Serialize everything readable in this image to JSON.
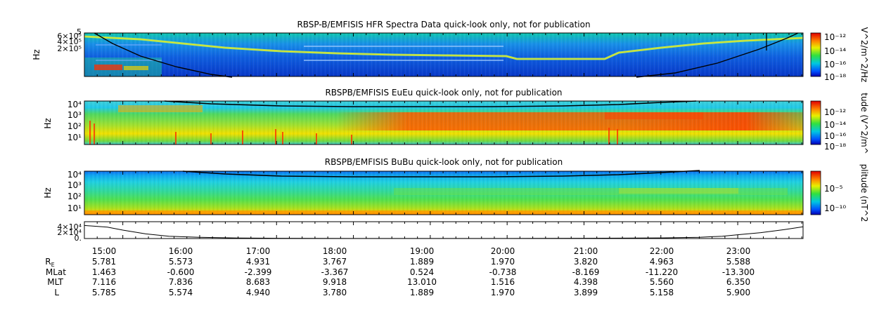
{
  "chart_data": [
    {
      "type": "heatmap",
      "title": "RBSP-B/EMFISIS  HFR Spectra Data quick-look only, not for publication",
      "ylabel": "Hz",
      "ylim": [
        10000,
        500000
      ],
      "yscale": "log",
      "ytick_labels": [
        "5",
        "6×10⁵",
        "4×10⁵",
        "2×10⁵"
      ],
      "colorbar": {
        "label": "V^2/m^2/Hz",
        "ticks": [
          "10⁻¹²",
          "10⁻¹⁴",
          "10⁻¹⁶",
          "10⁻¹⁸"
        ],
        "range": [
          1e-18,
          1e-11
        ]
      }
    },
    {
      "type": "heatmap",
      "title": "RBSPB/EMFISIS  EuEu quick-look only, not for publication",
      "ylabel": "Hz",
      "ylim": [
        3,
        20000
      ],
      "yscale": "log",
      "ytick_labels": [
        "10⁴",
        "10³",
        "10²",
        "10¹"
      ],
      "colorbar": {
        "label": "tude (V^2/m^",
        "ticks": [
          "10⁻¹²",
          "10⁻¹⁴",
          "10⁻¹⁶",
          "10⁻¹⁸"
        ],
        "range": [
          1e-18,
          1e-11
        ]
      }
    },
    {
      "type": "heatmap",
      "title": "RBSPB/EMFISIS  BuBu quick-look only, not for publication",
      "ylabel": "Hz",
      "ylim": [
        3,
        20000
      ],
      "yscale": "log",
      "ytick_labels": [
        "10⁴",
        "10³",
        "10²",
        "10¹"
      ],
      "colorbar": {
        "label": "plitude (nT^2",
        "ticks": [
          "10⁻⁵",
          "10⁻¹⁰"
        ],
        "range": [
          1e-12,
          0.001
        ]
      }
    },
    {
      "type": "line",
      "title": "",
      "ytick_labels": [
        "4×10⁴",
        "2×10⁴",
        "0."
      ],
      "ylim": [
        0,
        40000
      ],
      "x_hours": [
        14.5,
        14.8,
        15.0,
        15.3,
        15.6,
        16.0,
        16.5,
        17.0,
        18.0,
        19.0,
        20.0,
        21.0,
        22.0,
        22.5,
        22.8,
        23.0,
        23.3,
        23.6,
        23.85
      ],
      "values": [
        31000,
        27000,
        20000,
        11000,
        5500,
        2800,
        1200,
        600,
        200,
        100,
        200,
        600,
        1500,
        3000,
        5500,
        9000,
        14000,
        21000,
        28000
      ]
    }
  ],
  "xaxis": {
    "ticks": [
      "15:00",
      "16:00",
      "17:00",
      "18:00",
      "19:00",
      "20:00",
      "21:00",
      "22:00",
      "23:00"
    ],
    "range_hours": [
      14.5,
      23.85
    ]
  },
  "ephemeris": {
    "rows": [
      {
        "label": "Re",
        "values": [
          "5.781",
          "5.573",
          "4.931",
          "3.767",
          "1.889",
          "1.970",
          "3.820",
          "4.963",
          "5.588"
        ]
      },
      {
        "label": "MLat",
        "values": [
          "1.463",
          "-0.600",
          "-2.399",
          "-3.367",
          "0.524",
          "-0.738",
          "-8.169",
          "-11.220",
          "-13.300"
        ]
      },
      {
        "label": "MLT",
        "values": [
          "7.116",
          "7.836",
          "8.683",
          "9.918",
          "13.010",
          "1.516",
          "4.398",
          "5.560",
          "6.350"
        ]
      },
      {
        "label": "L",
        "values": [
          "5.785",
          "5.574",
          "4.940",
          "3.780",
          "1.889",
          "1.970",
          "3.899",
          "5.158",
          "5.900"
        ]
      }
    ]
  },
  "colors": {
    "spectrogram_low": "#0010c8",
    "spectrogram_high": "#d00000",
    "overlay_line": "#000000"
  }
}
